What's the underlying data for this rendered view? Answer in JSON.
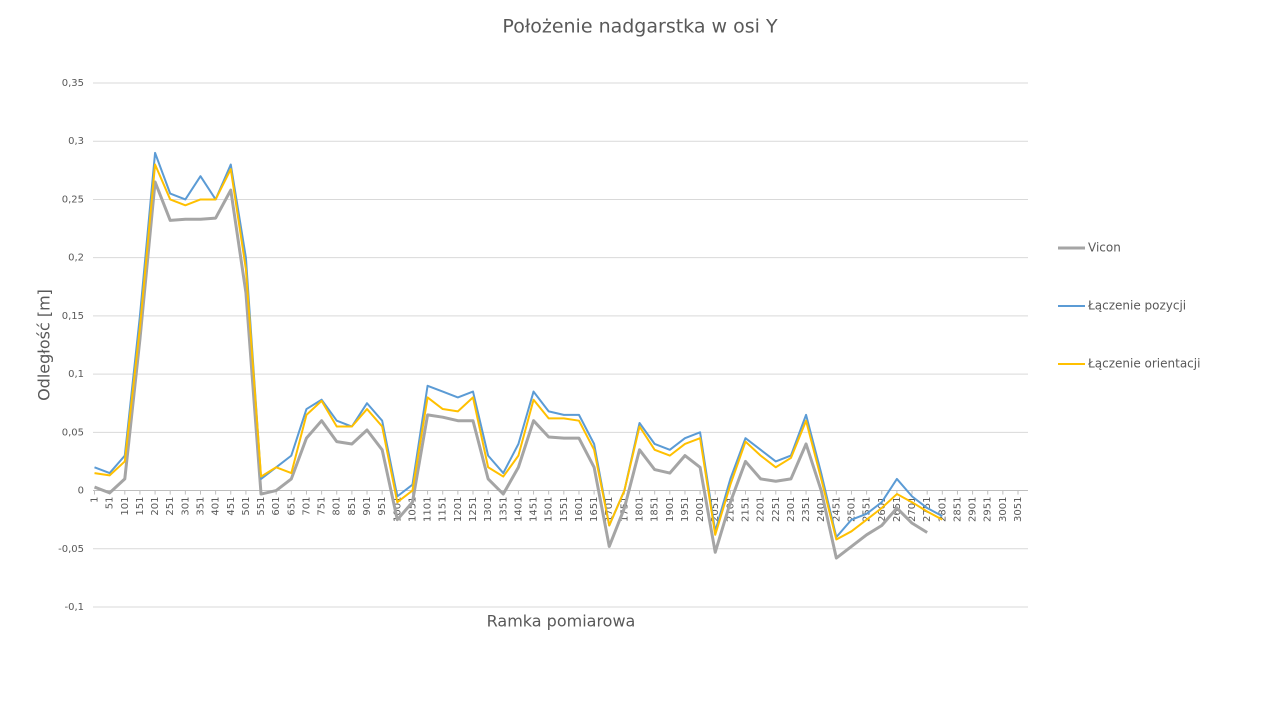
{
  "chart_data": {
    "type": "line",
    "title": "Położenie nadgarstka w osi Y",
    "x_label": "Ramka pomiarowa",
    "y_label": "Odległość [m]",
    "x": [
      1,
      51,
      101,
      151,
      201,
      251,
      301,
      351,
      401,
      451,
      501,
      551,
      601,
      651,
      701,
      751,
      801,
      851,
      901,
      951,
      1001,
      1051,
      1101,
      1151,
      1201,
      1251,
      1301,
      1351,
      1401,
      1451,
      1501,
      1551,
      1601,
      1651,
      1701,
      1751,
      1801,
      1851,
      1901,
      1951,
      2001,
      2051,
      2101,
      2151,
      2201,
      2251,
      2301,
      2351,
      2401,
      2451,
      2501,
      2551,
      2601,
      2651,
      2701,
      2751,
      2801
    ],
    "series": [
      {
        "name": "Vicon",
        "color": "#a5a5a5",
        "values": [
          0.003,
          -0.002,
          0.01,
          0.13,
          0.265,
          0.232,
          0.233,
          0.233,
          0.234,
          0.258,
          0.17,
          -0.003,
          0.0,
          0.01,
          0.045,
          0.06,
          0.042,
          0.04,
          0.052,
          0.035,
          -0.025,
          -0.01,
          0.065,
          0.063,
          0.06,
          0.06,
          0.01,
          -0.003,
          0.02,
          0.06,
          0.046,
          0.045,
          0.045,
          0.02,
          -0.048,
          -0.015,
          0.035,
          0.018,
          0.015,
          0.03,
          0.02,
          -0.053,
          -0.01,
          0.025,
          0.01,
          0.008,
          0.01,
          0.04,
          0.0,
          -0.058,
          -0.048,
          -0.038,
          -0.03,
          -0.015,
          -0.028,
          -0.036,
          null
        ]
      },
      {
        "name": "Łączenie pozycji",
        "color": "#5b9bd5",
        "values": [
          0.02,
          0.015,
          0.03,
          0.15,
          0.29,
          0.255,
          0.25,
          0.27,
          0.25,
          0.28,
          0.2,
          0.01,
          0.02,
          0.03,
          0.07,
          0.078,
          0.06,
          0.055,
          0.075,
          0.06,
          -0.005,
          0.005,
          0.09,
          0.085,
          0.08,
          0.085,
          0.03,
          0.015,
          0.04,
          0.085,
          0.068,
          0.065,
          0.065,
          0.04,
          -0.03,
          0.0,
          0.058,
          0.04,
          0.035,
          0.045,
          0.05,
          -0.035,
          0.01,
          0.045,
          0.035,
          0.025,
          0.03,
          0.065,
          0.015,
          -0.04,
          -0.025,
          -0.02,
          -0.01,
          0.01,
          -0.005,
          -0.015,
          -0.022
        ]
      },
      {
        "name": "Łączenie orientacji",
        "color": "#ffc000",
        "values": [
          0.015,
          0.013,
          0.025,
          0.14,
          0.28,
          0.25,
          0.245,
          0.25,
          0.25,
          0.276,
          0.19,
          0.012,
          0.02,
          0.015,
          0.065,
          0.077,
          0.055,
          0.055,
          0.07,
          0.055,
          -0.01,
          0.0,
          0.08,
          0.07,
          0.068,
          0.08,
          0.02,
          0.012,
          0.03,
          0.078,
          0.062,
          0.062,
          0.06,
          0.035,
          -0.03,
          0.0,
          0.055,
          0.035,
          0.03,
          0.04,
          0.045,
          -0.038,
          0.005,
          0.042,
          0.03,
          0.02,
          0.028,
          0.06,
          0.01,
          -0.042,
          -0.035,
          -0.025,
          -0.015,
          -0.003,
          -0.01,
          -0.018,
          -0.025
        ]
      }
    ],
    "xlim": [
      -4,
      3084
    ],
    "xticks": [
      1,
      51,
      101,
      151,
      201,
      251,
      301,
      351,
      401,
      451,
      501,
      551,
      601,
      651,
      701,
      751,
      801,
      851,
      901,
      951,
      1001,
      1051,
      1101,
      1151,
      1201,
      1251,
      1301,
      1351,
      1401,
      1451,
      1501,
      1551,
      1601,
      1651,
      1701,
      1751,
      1801,
      1851,
      1901,
      1951,
      2001,
      2051,
      2101,
      2151,
      2201,
      2251,
      2301,
      2351,
      2401,
      2451,
      2501,
      2551,
      2601,
      2651,
      2701,
      2751,
      2801,
      2851,
      2901,
      2951,
      3001,
      3051
    ],
    "ylim": [
      -0.1,
      0.35
    ],
    "yticks": [
      {
        "value": -0.1,
        "label": "-0,1"
      },
      {
        "value": -0.05,
        "label": "-0,05"
      },
      0,
      {
        "value": 0.05,
        "label": "0,05"
      },
      {
        "value": 0.1,
        "label": "0,1"
      },
      {
        "value": 0.15,
        "label": "0,15"
      },
      {
        "value": 0.2,
        "label": "0,2"
      },
      {
        "value": 0.25,
        "label": "0,25"
      },
      {
        "value": 0.3,
        "label": "0,3"
      },
      {
        "value": 0.35,
        "label": "0,35"
      }
    ],
    "grid": true,
    "legend": "right"
  }
}
